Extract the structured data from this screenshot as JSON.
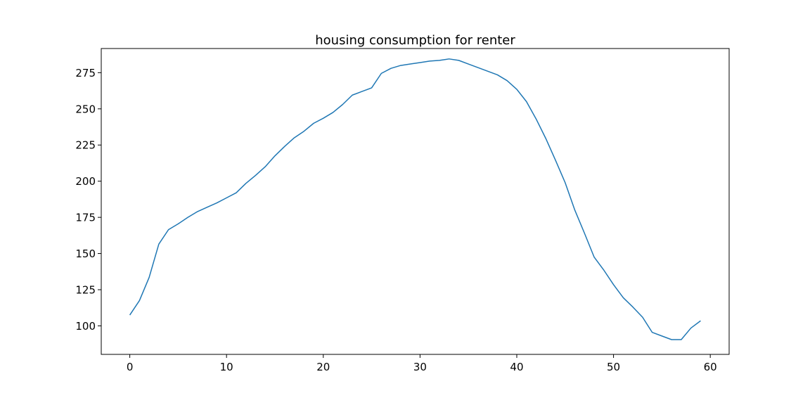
{
  "chart_data": {
    "type": "line",
    "title": "housing consumption for renter",
    "xlabel": "",
    "ylabel": "",
    "xlim": [
      -2.95,
      61.95
    ],
    "ylim": [
      80.3,
      291.7
    ],
    "xticks": [
      0,
      10,
      20,
      30,
      40,
      50,
      60
    ],
    "yticks": [
      100,
      125,
      150,
      175,
      200,
      225,
      250,
      275
    ],
    "grid": false,
    "legend": "none",
    "series": [
      {
        "color": "#1f77b4",
        "x": [
          0,
          1,
          2,
          3,
          4,
          5,
          6,
          7,
          8,
          9,
          10,
          11,
          12,
          13,
          14,
          15,
          16,
          17,
          18,
          19,
          20,
          21,
          22,
          23,
          24,
          25,
          26,
          27,
          28,
          29,
          30,
          31,
          32,
          33,
          34,
          35,
          36,
          37,
          38,
          39,
          40,
          41,
          42,
          43,
          44,
          45,
          46,
          47,
          48,
          49,
          50,
          51,
          52,
          53,
          54,
          55,
          56,
          57,
          58,
          59
        ],
        "y": [
          107.5,
          117.5,
          133.5,
          156.5,
          166.5,
          170.5,
          175,
          179,
          182,
          185,
          188.5,
          192,
          198.5,
          204,
          210,
          217.5,
          224,
          230,
          234.5,
          240,
          243.5,
          247.5,
          253,
          259.5,
          262,
          264.5,
          274.5,
          278,
          280,
          281,
          282,
          283,
          283.5,
          284.5,
          283.5,
          281,
          278.5,
          276,
          273.5,
          269.5,
          263.5,
          255,
          243,
          229.5,
          214.5,
          199,
          180,
          164,
          147.5,
          138.5,
          128.5,
          119.5,
          113,
          106,
          95.5,
          93,
          90.5,
          90.5,
          98.5,
          103.5
        ]
      }
    ]
  }
}
